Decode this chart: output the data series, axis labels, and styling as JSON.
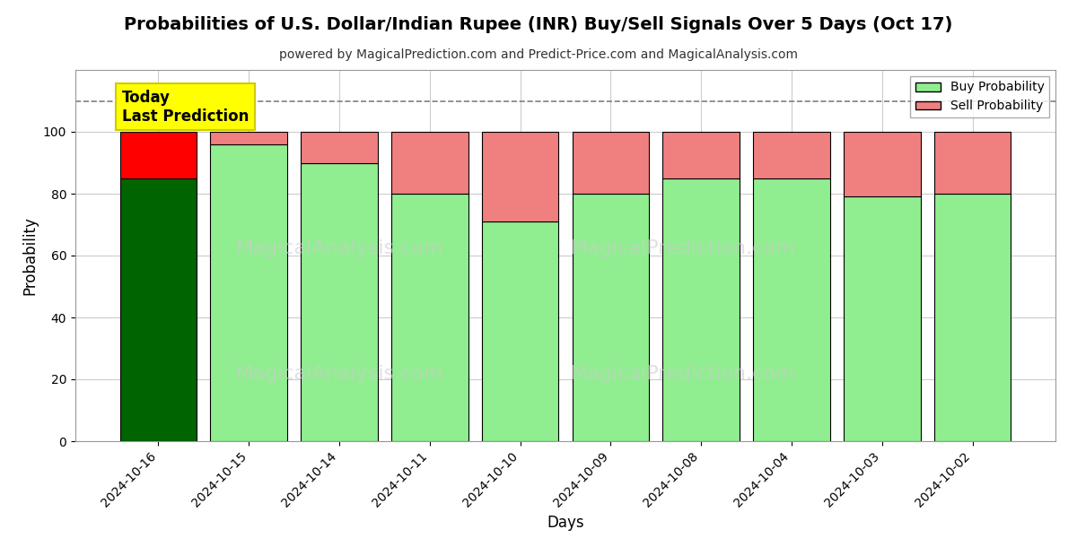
{
  "title": "Probabilities of U.S. Dollar/Indian Rupee (INR) Buy/Sell Signals Over 5 Days (Oct 17)",
  "subtitle": "powered by MagicalPrediction.com and Predict-Price.com and MagicalAnalysis.com",
  "xlabel": "Days",
  "ylabel": "Probability",
  "categories": [
    "2024-10-16",
    "2024-10-15",
    "2024-10-14",
    "2024-10-11",
    "2024-10-10",
    "2024-10-09",
    "2024-10-08",
    "2024-10-04",
    "2024-10-03",
    "2024-10-02"
  ],
  "buy_values": [
    85,
    96,
    90,
    80,
    71,
    80,
    85,
    85,
    79,
    80
  ],
  "sell_values": [
    15,
    4,
    10,
    20,
    29,
    20,
    15,
    15,
    21,
    20
  ],
  "today_index": 0,
  "buy_color_today": "#006400",
  "sell_color_today": "#ff0000",
  "buy_color_normal": "#90ee90",
  "sell_color_normal": "#f08080",
  "bar_edge_color": "#000000",
  "bar_edge_width": 0.8,
  "ylim": [
    0,
    120
  ],
  "yticks": [
    0,
    20,
    40,
    60,
    80,
    100
  ],
  "dashed_line_y": 110,
  "dashed_line_color": "#808080",
  "today_box_color": "#ffff00",
  "today_box_text": "Today\nLast Prediction",
  "legend_buy_label": "Buy Probability",
  "legend_sell_label": "Sell Probability",
  "watermark_color": "#cccccc",
  "background_color": "#ffffff",
  "grid_color": "#cccccc",
  "title_fontsize": 14,
  "subtitle_fontsize": 10,
  "axis_label_fontsize": 12,
  "tick_fontsize": 10,
  "bar_width": 0.85
}
